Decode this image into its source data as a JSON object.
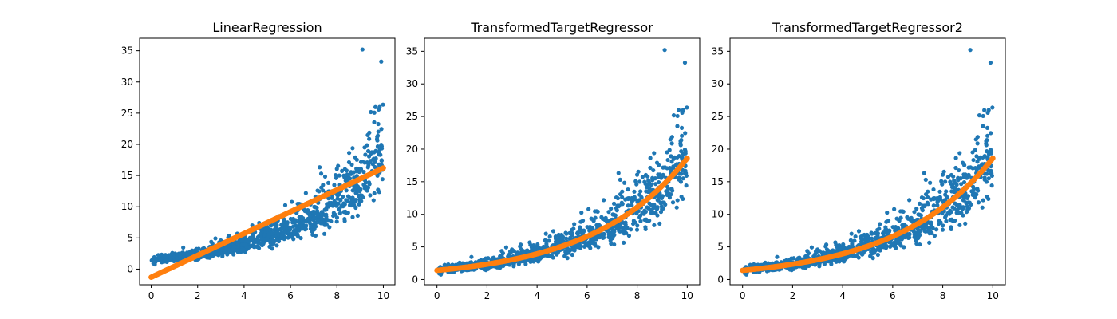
{
  "chart_data": [
    {
      "type": "scatter",
      "title": "LinearRegression",
      "xlabel": "",
      "ylabel": "",
      "xlim": [
        -0.5,
        10.5
      ],
      "ylim": [
        -2.5,
        37
      ],
      "xticks": [
        0,
        2,
        4,
        6,
        8,
        10
      ],
      "yticks": [
        0,
        5,
        10,
        15,
        20,
        25,
        30,
        35
      ],
      "grid": false,
      "legend": "none",
      "series": [
        {
          "kind": "scatter",
          "color": "#1f77b4",
          "generator": "exponential-noise",
          "n": 1000,
          "x_range": [
            0,
            10
          ],
          "trend_start": 1.4,
          "trend_end": 18.5,
          "peak_point": [
            9.1,
            35.2
          ]
        },
        {
          "kind": "line",
          "color": "#ff7f0e",
          "x": [
            0,
            10
          ],
          "y": [
            -1.3,
            16.2
          ]
        }
      ]
    },
    {
      "type": "scatter",
      "title": "TransformedTargetRegressor",
      "xlabel": "",
      "ylabel": "",
      "xlim": [
        -0.5,
        10.5
      ],
      "ylim": [
        -0.8,
        37
      ],
      "xticks": [
        0,
        2,
        4,
        6,
        8,
        10
      ],
      "yticks": [
        0,
        5,
        10,
        15,
        20,
        25,
        30,
        35
      ],
      "grid": false,
      "legend": "none",
      "series": [
        {
          "kind": "scatter",
          "color": "#1f77b4",
          "generator": "exponential-noise",
          "n": 1000,
          "x_range": [
            0,
            10
          ],
          "trend_start": 1.4,
          "trend_end": 18.5,
          "peak_point": [
            9.1,
            35.2
          ]
        },
        {
          "kind": "curve",
          "color": "#ff7f0e",
          "x_range": [
            0,
            10
          ],
          "y_start": 1.4,
          "y_end": 18.6
        }
      ]
    },
    {
      "type": "scatter",
      "title": "TransformedTargetRegressor2",
      "xlabel": "",
      "ylabel": "",
      "xlim": [
        -0.5,
        10.5
      ],
      "ylim": [
        -0.8,
        37
      ],
      "xticks": [
        0,
        2,
        4,
        6,
        8,
        10
      ],
      "yticks": [
        0,
        5,
        10,
        15,
        20,
        25,
        30,
        35
      ],
      "grid": false,
      "legend": "none",
      "series": [
        {
          "kind": "scatter",
          "color": "#1f77b4",
          "generator": "exponential-noise",
          "n": 1000,
          "x_range": [
            0,
            10
          ],
          "trend_start": 1.4,
          "trend_end": 18.5,
          "peak_point": [
            9.1,
            35.2
          ]
        },
        {
          "kind": "curve",
          "color": "#ff7f0e",
          "x_range": [
            0,
            10
          ],
          "y_start": 1.4,
          "y_end": 18.6
        }
      ]
    }
  ]
}
